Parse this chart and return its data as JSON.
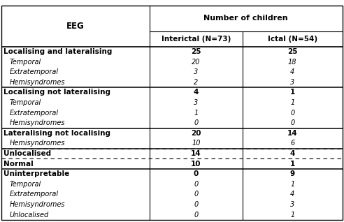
{
  "title": "Number of children",
  "col1_header": "EEG",
  "col2_header": "Interictal (N=73)",
  "col3_header": "Ictal (N=54)",
  "rows": [
    {
      "label": "Localising and lateralising",
      "v1": "25",
      "v2": "25",
      "bold": true,
      "italic": false,
      "indent": false
    },
    {
      "label": "Temporal",
      "v1": "20",
      "v2": "18",
      "bold": false,
      "italic": true,
      "indent": true
    },
    {
      "label": "Extratemporal",
      "v1": "3",
      "v2": "4",
      "bold": false,
      "italic": true,
      "indent": true
    },
    {
      "label": "Hemisyndromes",
      "v1": "2",
      "v2": "3",
      "bold": false,
      "italic": true,
      "indent": true
    },
    {
      "label": "Localising not lateralising",
      "v1": "4",
      "v2": "1",
      "bold": true,
      "italic": false,
      "indent": false
    },
    {
      "label": "Temporal",
      "v1": "3",
      "v2": "1",
      "bold": false,
      "italic": true,
      "indent": true
    },
    {
      "label": "Extratemporal",
      "v1": "1",
      "v2": "0",
      "bold": false,
      "italic": true,
      "indent": true
    },
    {
      "label": "Hemisyndromes",
      "v1": "0",
      "v2": "0",
      "bold": false,
      "italic": true,
      "indent": true
    },
    {
      "label": "Lateralising not localising",
      "v1": "20",
      "v2": "14",
      "bold": true,
      "italic": false,
      "indent": false
    },
    {
      "label": "Hemisyndromes",
      "v1": "10",
      "v2": "6",
      "bold": false,
      "italic": true,
      "indent": true
    },
    {
      "label": "Unlocalised",
      "v1": "14",
      "v2": "4",
      "bold": true,
      "italic": false,
      "indent": false,
      "dashed": true
    },
    {
      "label": "Normal",
      "v1": "10",
      "v2": "1",
      "bold": true,
      "italic": false,
      "indent": false
    },
    {
      "label": "Uninterpretable",
      "v1": "0",
      "v2": "9",
      "bold": true,
      "italic": false,
      "indent": false
    },
    {
      "label": "Temporal",
      "v1": "0",
      "v2": "1",
      "bold": false,
      "italic": true,
      "indent": true
    },
    {
      "label": "Extratemporal",
      "v1": "0",
      "v2": "4",
      "bold": false,
      "italic": true,
      "indent": true
    },
    {
      "label": "Hemisyndromes",
      "v1": "0",
      "v2": "3",
      "bold": false,
      "italic": true,
      "indent": true
    },
    {
      "label": "Unlocalised",
      "v1": "0",
      "v2": "1",
      "bold": false,
      "italic": true,
      "indent": true
    }
  ],
  "section_borders_after": [
    3,
    7,
    9,
    11
  ],
  "dashed_row": 10,
  "bg_color": "#ffffff",
  "text_color": "#000000",
  "figsize": [
    4.92,
    3.18
  ],
  "dpi": 100
}
